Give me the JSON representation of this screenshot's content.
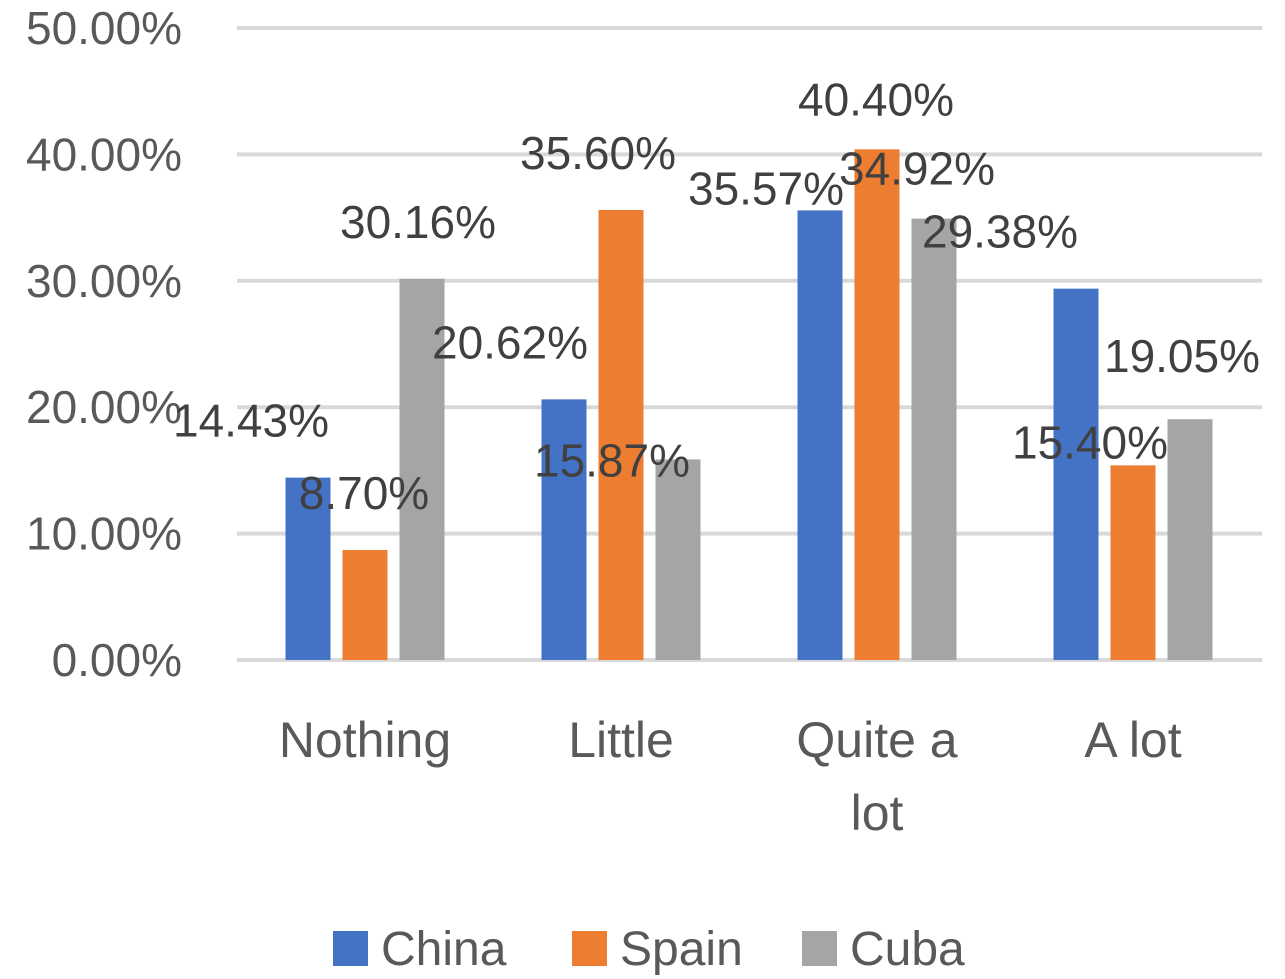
{
  "chart_data": {
    "type": "bar",
    "title": "",
    "xlabel": "",
    "ylabel": "",
    "categories": [
      "Nothing",
      "Little",
      "Quite a lot",
      "A lot"
    ],
    "series": [
      {
        "name": "China",
        "color": "#4472C4",
        "values": [
          14.43,
          20.62,
          35.57,
          29.38
        ],
        "labels": [
          "14.43%",
          "20.62%",
          "35.57%",
          "29.38%"
        ]
      },
      {
        "name": "Spain",
        "color": "#ED7D31",
        "values": [
          8.7,
          35.6,
          40.4,
          15.4
        ],
        "labels": [
          "8.70%",
          "35.60%",
          "40.40%",
          "15.40%"
        ]
      },
      {
        "name": "Cuba",
        "color": "#A5A5A5",
        "values": [
          30.16,
          15.87,
          34.92,
          19.05
        ],
        "labels": [
          "30.16%",
          "15.87%",
          "34.92%",
          "19.05%"
        ]
      }
    ],
    "ylim": [
      0,
      50
    ],
    "y_ticks": [
      "0.00%",
      "10.00%",
      "20.00%",
      "30.00%",
      "40.00%",
      "50.00%"
    ],
    "grid": true,
    "legend_position": "bottom"
  }
}
